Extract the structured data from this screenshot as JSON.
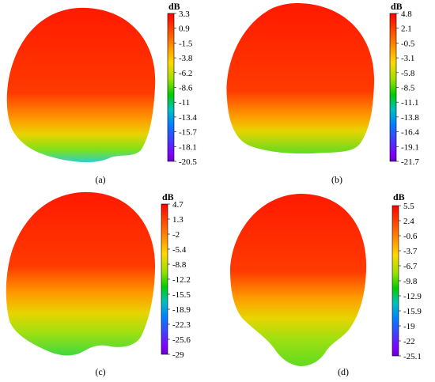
{
  "unit_label": "dB",
  "panels": [
    {
      "label": "(a)",
      "ticks": [
        "3.3",
        "0.9",
        "-1.5",
        "-3.8",
        "-6.2",
        "-8.6",
        "-11",
        "-13.4",
        "-15.7",
        "-18.1",
        "-20.5"
      ]
    },
    {
      "label": "(b)",
      "ticks": [
        "4.8",
        "2.1",
        "-0.5",
        "-3.1",
        "-5.8",
        "-8.5",
        "-11.1",
        "-13.8",
        "-16.4",
        "-19.1",
        "-21.7"
      ]
    },
    {
      "label": "(c)",
      "ticks": [
        "4.7",
        "1.3",
        "-2",
        "-5.4",
        "-8.8",
        "-12.2",
        "-15.5",
        "-18.9",
        "-22.3",
        "-25.6",
        "-29"
      ]
    },
    {
      "label": "(d)",
      "ticks": [
        "5.5",
        "2.4",
        "-0.6",
        "-3.7",
        "-6.7",
        "-9.8",
        "-12.9",
        "-15.9",
        "-19",
        "-22",
        "-25.1"
      ]
    }
  ],
  "colors": {
    "colormap": [
      "#ff0000",
      "#ff8000",
      "#ffd800",
      "#9ae000",
      "#00cc00",
      "#00c0c0",
      "#0080ff",
      "#4040ff",
      "#8000ff",
      "#6a00c8"
    ],
    "shape_red": "#ff2200",
    "shape_orange": "#ff7a00",
    "shape_yellow": "#f2d400",
    "shape_green": "#7ee01a",
    "shape_cyan": "#30d0c0"
  }
}
